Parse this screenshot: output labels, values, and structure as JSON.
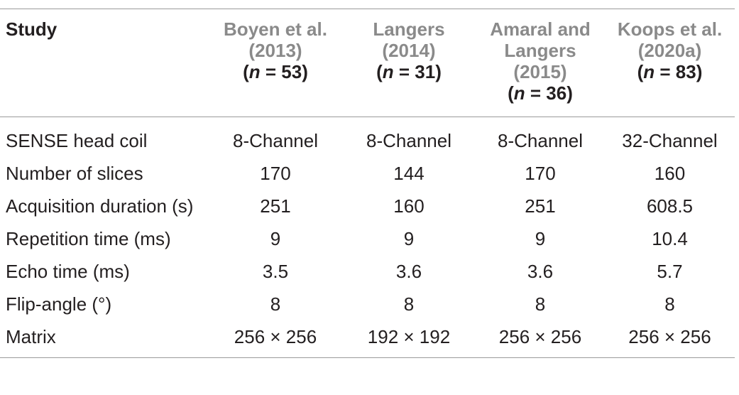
{
  "header": {
    "study_label": "Study",
    "columns": [
      {
        "cite_lines": [
          "Boyen et al.",
          "(2013)"
        ],
        "n_value": "53"
      },
      {
        "cite_lines": [
          "Langers",
          "(2014)"
        ],
        "n_value": "31"
      },
      {
        "cite_lines": [
          "Amaral and",
          "Langers",
          "(2015)"
        ],
        "n_value": "36"
      },
      {
        "cite_lines": [
          "Koops et al.",
          "(2020a)"
        ],
        "n_value": "83"
      }
    ],
    "n_symbol": "n",
    "n_equals": " = "
  },
  "rows": [
    {
      "label": "SENSE head coil",
      "values": [
        "8-Channel",
        "8-Channel",
        "8-Channel",
        "32-Channel"
      ]
    },
    {
      "label": "Number of slices",
      "values": [
        "170",
        "144",
        "170",
        "160"
      ]
    },
    {
      "label": "Acquisition duration (s)",
      "values": [
        "251",
        "160",
        "251",
        "608.5"
      ]
    },
    {
      "label": "Repetition time (ms)",
      "values": [
        "9",
        "9",
        "9",
        "10.4"
      ]
    },
    {
      "label": "Echo time (ms)",
      "values": [
        "3.5",
        "3.6",
        "3.6",
        "5.7"
      ]
    },
    {
      "label": "Flip-angle (°)",
      "values": [
        "8",
        "8",
        "8",
        "8"
      ]
    },
    {
      "label": "Matrix",
      "values": [
        "256 × 256",
        "192 × 192",
        "256 × 256",
        "256 × 256"
      ]
    }
  ]
}
